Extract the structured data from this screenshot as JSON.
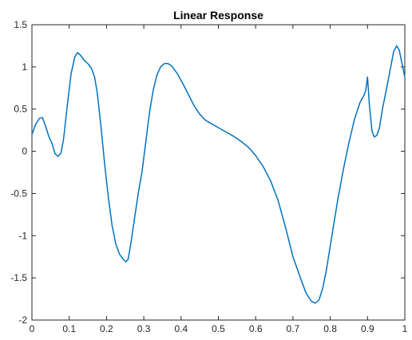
{
  "chart_data": {
    "type": "line",
    "title": "Linear Response",
    "xlabel": "",
    "ylabel": "",
    "xlim": [
      0,
      1
    ],
    "ylim": [
      -2,
      1.5
    ],
    "x_ticks": [
      0,
      0.1,
      0.2,
      0.3,
      0.4,
      0.5,
      0.6,
      0.7,
      0.8,
      0.9,
      1
    ],
    "x_tick_labels": [
      "0",
      "0.1",
      "0.2",
      "0.3",
      "0.4",
      "0.5",
      "0.6",
      "0.7",
      "0.8",
      "0.9",
      "1"
    ],
    "y_ticks": [
      1.5,
      1,
      0.5,
      0,
      -0.5,
      -1,
      -1.5,
      -2
    ],
    "y_tick_labels": [
      "1.5",
      "1",
      "0.5",
      "0",
      "-0.5",
      "-1",
      "-1.5",
      "-2"
    ],
    "grid": false,
    "series": [
      {
        "color": "#0072BD",
        "points": [
          [
            0.0,
            0.2
          ],
          [
            0.01,
            0.32
          ],
          [
            0.02,
            0.39
          ],
          [
            0.028,
            0.4
          ],
          [
            0.035,
            0.32
          ],
          [
            0.045,
            0.18
          ],
          [
            0.055,
            0.08
          ],
          [
            0.062,
            -0.03
          ],
          [
            0.07,
            -0.06
          ],
          [
            0.078,
            -0.02
          ],
          [
            0.085,
            0.15
          ],
          [
            0.095,
            0.55
          ],
          [
            0.105,
            0.92
          ],
          [
            0.115,
            1.12
          ],
          [
            0.122,
            1.17
          ],
          [
            0.13,
            1.14
          ],
          [
            0.14,
            1.08
          ],
          [
            0.15,
            1.04
          ],
          [
            0.16,
            0.98
          ],
          [
            0.168,
            0.88
          ],
          [
            0.175,
            0.7
          ],
          [
            0.185,
            0.3
          ],
          [
            0.195,
            -0.15
          ],
          [
            0.205,
            -0.55
          ],
          [
            0.215,
            -0.88
          ],
          [
            0.225,
            -1.1
          ],
          [
            0.235,
            -1.22
          ],
          [
            0.245,
            -1.28
          ],
          [
            0.252,
            -1.31
          ],
          [
            0.258,
            -1.28
          ],
          [
            0.265,
            -1.1
          ],
          [
            0.275,
            -0.8
          ],
          [
            0.285,
            -0.5
          ],
          [
            0.295,
            -0.25
          ],
          [
            0.305,
            0.1
          ],
          [
            0.315,
            0.45
          ],
          [
            0.325,
            0.72
          ],
          [
            0.335,
            0.9
          ],
          [
            0.345,
            1.0
          ],
          [
            0.355,
            1.04
          ],
          [
            0.365,
            1.04
          ],
          [
            0.375,
            1.01
          ],
          [
            0.39,
            0.92
          ],
          [
            0.405,
            0.8
          ],
          [
            0.42,
            0.67
          ],
          [
            0.435,
            0.54
          ],
          [
            0.45,
            0.44
          ],
          [
            0.465,
            0.37
          ],
          [
            0.48,
            0.33
          ],
          [
            0.5,
            0.28
          ],
          [
            0.52,
            0.23
          ],
          [
            0.54,
            0.18
          ],
          [
            0.56,
            0.12
          ],
          [
            0.58,
            0.05
          ],
          [
            0.6,
            -0.05
          ],
          [
            0.62,
            -0.18
          ],
          [
            0.64,
            -0.35
          ],
          [
            0.66,
            -0.58
          ],
          [
            0.68,
            -0.9
          ],
          [
            0.7,
            -1.25
          ],
          [
            0.72,
            -1.5
          ],
          [
            0.735,
            -1.68
          ],
          [
            0.75,
            -1.78
          ],
          [
            0.76,
            -1.8
          ],
          [
            0.77,
            -1.76
          ],
          [
            0.78,
            -1.62
          ],
          [
            0.79,
            -1.4
          ],
          [
            0.8,
            -1.12
          ],
          [
            0.81,
            -0.85
          ],
          [
            0.82,
            -0.58
          ],
          [
            0.835,
            -0.22
          ],
          [
            0.85,
            0.1
          ],
          [
            0.865,
            0.38
          ],
          [
            0.88,
            0.58
          ],
          [
            0.89,
            0.66
          ],
          [
            0.895,
            0.72
          ],
          [
            0.9,
            0.88
          ],
          [
            0.905,
            0.55
          ],
          [
            0.912,
            0.24
          ],
          [
            0.918,
            0.17
          ],
          [
            0.925,
            0.19
          ],
          [
            0.932,
            0.28
          ],
          [
            0.94,
            0.5
          ],
          [
            0.95,
            0.72
          ],
          [
            0.96,
            0.95
          ],
          [
            0.97,
            1.18
          ],
          [
            0.978,
            1.25
          ],
          [
            0.985,
            1.2
          ],
          [
            0.992,
            1.05
          ],
          [
            1.0,
            0.88
          ]
        ]
      }
    ]
  }
}
